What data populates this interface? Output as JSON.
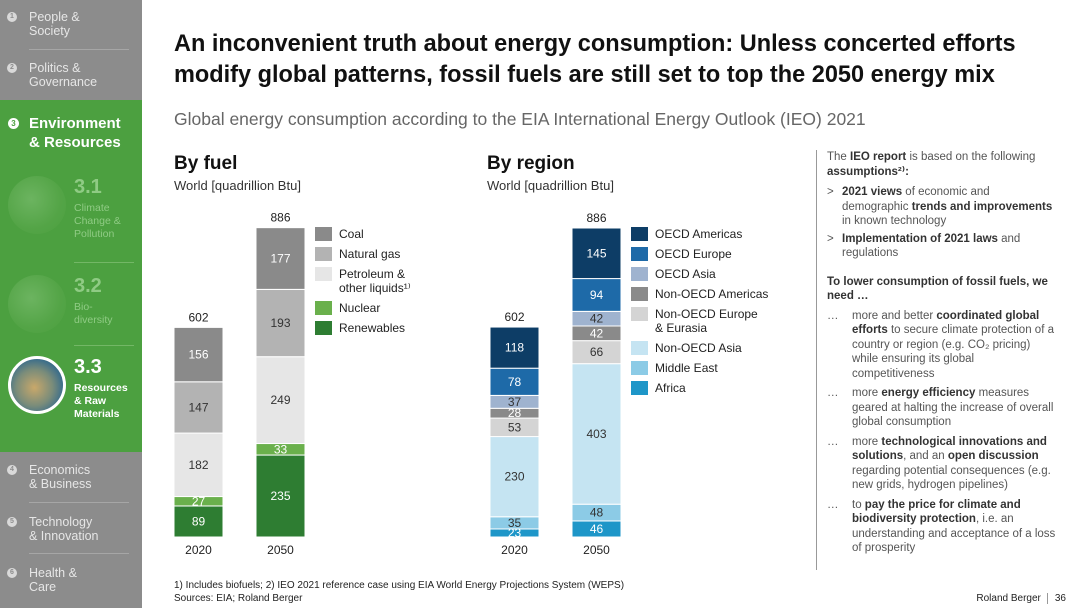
{
  "sidebar": {
    "items_top": [
      {
        "num": "1",
        "label": "People &\nSociety"
      },
      {
        "num": "2",
        "label": "Politics &\nGovernance"
      }
    ],
    "active": {
      "num": "3",
      "label": "Environment\n& Resources"
    },
    "subs": [
      {
        "num": "3.1",
        "label": "Climate\nChange &\nPollution"
      },
      {
        "num": "3.2",
        "label": "Bio-\ndiversity"
      },
      {
        "num": "3.3",
        "label": "Resources\n& Raw\nMaterials"
      }
    ],
    "items_bottom": [
      {
        "num": "4",
        "label": "Economics\n& Business"
      },
      {
        "num": "5",
        "label": "Technology\n& Innovation"
      },
      {
        "num": "6",
        "label": "Health &\nCare"
      }
    ]
  },
  "title": "An inconvenient truth about energy consumption: Unless concerted efforts modify global patterns, fossil fuels are still set to top the 2050 energy mix",
  "subtitle": "Global energy consumption according to the EIA International Energy Outlook (IEO) 2021",
  "chart_data": [
    {
      "type": "bar",
      "stacked": true,
      "title": "By fuel",
      "ylabel": "World [quadrillion Btu]",
      "categories": [
        "2020",
        "2050"
      ],
      "totals": [
        602,
        886
      ],
      "series": [
        {
          "name": "Renewables",
          "color": "#2e7d32",
          "values": [
            89,
            235
          ],
          "label_color": "#ffffff"
        },
        {
          "name": "Nuclear",
          "color": "#6ab04c",
          "values": [
            27,
            33
          ],
          "label_color": "#ffffff"
        },
        {
          "name": "Petroleum & other liquids",
          "color": "#e6e6e6",
          "values": [
            182,
            249
          ],
          "label_color": "#333333"
        },
        {
          "name": "Natural gas",
          "color": "#b3b3b3",
          "values": [
            147,
            193
          ],
          "label_color": "#333333"
        },
        {
          "name": "Coal",
          "color": "#8a8a8a",
          "values": [
            156,
            177
          ],
          "label_color": "#ffffff"
        }
      ]
    },
    {
      "type": "bar",
      "stacked": true,
      "title": "By region",
      "ylabel": "World [quadrillion Btu]",
      "categories": [
        "2020",
        "2050"
      ],
      "totals": [
        602,
        886
      ],
      "series": [
        {
          "name": "Africa",
          "color": "#1e96c8",
          "values": [
            23,
            46
          ],
          "label_color": "#ffffff"
        },
        {
          "name": "Middle East",
          "color": "#8ccbe6",
          "values": [
            35,
            48
          ],
          "label_color": "#333333"
        },
        {
          "name": "Non-OECD Asia",
          "color": "#c5e4f2",
          "values": [
            230,
            403
          ],
          "label_color": "#333333"
        },
        {
          "name": "Non-OECD Europe & Eurasia",
          "color": "#d4d4d4",
          "values": [
            53,
            66
          ],
          "label_color": "#333333"
        },
        {
          "name": "Non-OECD Americas",
          "color": "#8a8a8a",
          "values": [
            28,
            42
          ],
          "label_color": "#ffffff"
        },
        {
          "name": "OECD Asia",
          "color": "#9fb3cf",
          "values": [
            37,
            42
          ],
          "label_color": "#333333"
        },
        {
          "name": "OECD Europe",
          "color": "#1e6aa8",
          "values": [
            78,
            94
          ],
          "label_color": "#ffffff"
        },
        {
          "name": "OECD Americas",
          "color": "#0d3d66",
          "values": [
            118,
            145
          ],
          "label_color": "#ffffff"
        }
      ]
    }
  ],
  "legend_fuel": [
    {
      "label": "Coal",
      "color": "#8a8a8a"
    },
    {
      "label": "Natural gas",
      "color": "#b3b3b3"
    },
    {
      "label": "Petroleum &\nother liquids¹⁾",
      "color": "#e6e6e6"
    },
    {
      "label": "Nuclear",
      "color": "#6ab04c"
    },
    {
      "label": "Renewables",
      "color": "#2e7d32"
    }
  ],
  "legend_region": [
    {
      "label": "OECD Americas",
      "color": "#0d3d66"
    },
    {
      "label": "OECD Europe",
      "color": "#1e6aa8"
    },
    {
      "label": "OECD Asia",
      "color": "#9fb3cf"
    },
    {
      "label": "Non-OECD Americas",
      "color": "#8a8a8a"
    },
    {
      "label": "Non-OECD Europe\n& Eurasia",
      "color": "#d4d4d4"
    },
    {
      "label": "Non-OECD Asia",
      "color": "#c5e4f2"
    },
    {
      "label": "Middle East",
      "color": "#8ccbe6"
    },
    {
      "label": "Africa",
      "color": "#1e96c8"
    }
  ],
  "right_panel": {
    "intro_pre": "The ",
    "intro_bold": "IEO report",
    "intro_post": " is based on the following ",
    "intro_bold2": "assumptions²⁾:",
    "assump1_bold1": "2021 views",
    "assump1_text1": " of economic and demographic ",
    "assump1_bold2": "trends and improvements",
    "assump1_text2": " in known technology",
    "assump2_bold": "Implementation of 2021 laws",
    "assump2_text": " and regulations",
    "need_heading": "To lower consumption of fossil fuels, we need …",
    "need1_pre": "more and better ",
    "need1_bold": "coordinated global efforts",
    "need1_post": " to secure climate protection of a country or region (e.g. CO₂ pricing) while ensuring its global competitiveness",
    "need2_pre": "more ",
    "need2_bold": "energy efficiency",
    "need2_post": " measures geared at halting the increase of overall global consumption",
    "need3_pre": "more ",
    "need3_bold": "technological innovations and solutions",
    "need3_mid": ", and an ",
    "need3_bold2": "open discussion",
    "need3_post": " regarding potential consequences (e.g. new grids, hydrogen pipelines)",
    "need4_pre": "to ",
    "need4_bold": "pay the price for climate and biodiversity protection",
    "need4_post": ", i.e. an understanding and acceptance of a loss of prosperity",
    "bullet_marker": ">",
    "dots_marker": "…"
  },
  "footnote1": "1) Includes biofuels; 2) IEO 2021 reference case using EIA World Energy Projections System (WEPS)",
  "footnote2": "Sources: EIA; Roland Berger",
  "brand": "Roland Berger",
  "page": "36"
}
